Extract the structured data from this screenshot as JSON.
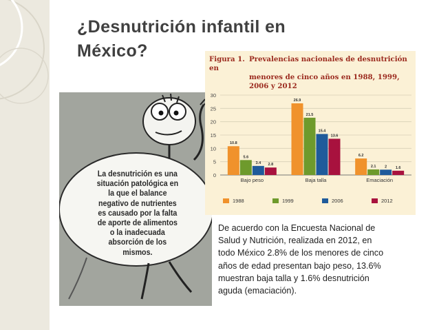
{
  "slide": {
    "title_line1": "¿Desnutrición infantil en",
    "title_line2": "México?"
  },
  "cartoon": {
    "lines": [
      "La desnutrición es una",
      "situación patológica en",
      "la que el balance",
      "negativo de nutrientes",
      "es causado por la falta",
      "de aporte de alimentos",
      "o la inadecuada",
      "absorción de los",
      "mismos."
    ]
  },
  "figure": {
    "number": "Figura 1.",
    "title_line1": "Prevalencias nacionales de desnutrición en",
    "title_line2": "menores de cinco años en 1988, 1999, 2006 y 2012"
  },
  "chart_data": {
    "type": "bar",
    "title": "Prevalencias nacionales de desnutrición en menores de cinco años en 1988, 1999, 2006 y 2012",
    "categories": [
      "Bajo peso",
      "Baja talla",
      "Emaciación"
    ],
    "series": [
      {
        "name": "1988",
        "values": [
          10.8,
          26.9,
          6.2
        ],
        "labels": [
          "10.8",
          "26.9",
          "6.2"
        ],
        "color": "#f0922c"
      },
      {
        "name": "1999",
        "values": [
          5.6,
          21.5,
          2.1
        ],
        "labels": [
          "5.6",
          "21.5",
          "2.1"
        ],
        "color": "#6e9a2c"
      },
      {
        "name": "2006",
        "values": [
          3.4,
          15.4,
          2.0
        ],
        "labels": [
          "3.4",
          "15.4",
          "2"
        ],
        "color": "#1f5b9b"
      },
      {
        "name": "2012",
        "values": [
          2.8,
          13.6,
          1.6
        ],
        "labels": [
          "2.8",
          "13.6",
          "1.6"
        ],
        "color": "#a8123e"
      }
    ],
    "yticks": [
      "0",
      "5",
      "10",
      "15",
      "20",
      "25",
      "30"
    ],
    "ylim": [
      0,
      30
    ],
    "grid": true,
    "legend_position": "bottom"
  },
  "caption": {
    "lines": [
      "De acuerdo con la Encuesta Nacional de",
      "Salud y Nutrición, realizada en 2012, en",
      "todo México 2.8% de los menores de cinco",
      "años de edad presentan bajo peso, 13.6%",
      "muestran baja talla y 1.6% desnutrición",
      "aguda (emaciación)."
    ]
  }
}
